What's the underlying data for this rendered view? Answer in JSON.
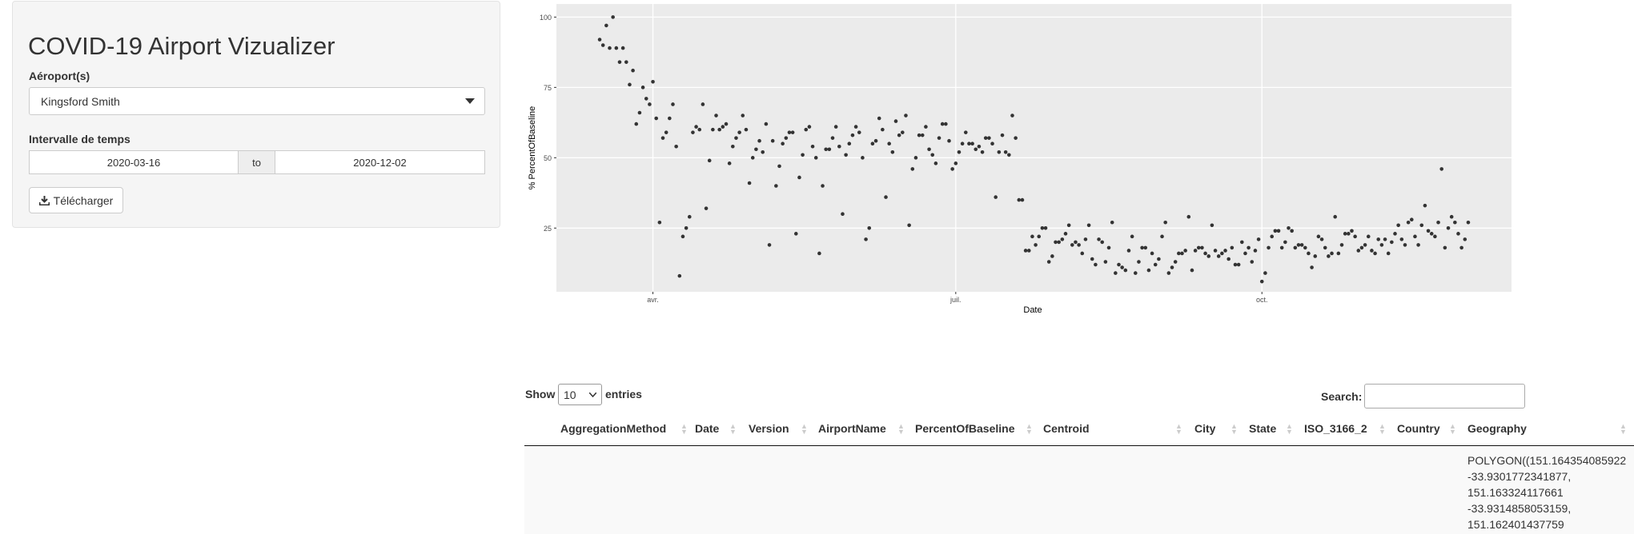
{
  "sidebar": {
    "title": "COVID-19 Airport Vizualizer",
    "airport_label": "Aéroport(s)",
    "airport_value": "Kingsford Smith",
    "date_label": "Intervalle de temps",
    "date_start": "2020-03-16",
    "date_sep": "to",
    "date_end": "2020-12-02",
    "download_button": "Télécharger"
  },
  "chart_data": {
    "type": "scatter",
    "xlabel": "Date",
    "ylabel": "% PercentOfBaseline",
    "grid": true,
    "color": "#333333",
    "xlim": [
      "2020-03-03",
      "2020-12-15"
    ],
    "xticks": [
      {
        "value": "2020-04-01",
        "label": "avr."
      },
      {
        "value": "2020-07-01",
        "label": "juil."
      },
      {
        "value": "2020-10-01",
        "label": "oct."
      }
    ],
    "ylim": [
      2.35,
      104.65
    ],
    "yticks": [
      25,
      50,
      75,
      100
    ],
    "x": [
      "2020-03-16",
      "2020-03-17",
      "2020-03-18",
      "2020-03-19",
      "2020-03-20",
      "2020-03-21",
      "2020-03-22",
      "2020-03-23",
      "2020-03-24",
      "2020-03-25",
      "2020-03-26",
      "2020-03-27",
      "2020-03-28",
      "2020-03-29",
      "2020-03-30",
      "2020-03-31",
      "2020-04-01",
      "2020-04-02",
      "2020-04-03",
      "2020-04-04",
      "2020-04-05",
      "2020-04-06",
      "2020-04-07",
      "2020-04-08",
      "2020-04-09",
      "2020-04-10",
      "2020-04-11",
      "2020-04-12",
      "2020-04-13",
      "2020-04-14",
      "2020-04-15",
      "2020-04-16",
      "2020-04-17",
      "2020-04-18",
      "2020-04-19",
      "2020-04-20",
      "2020-04-21",
      "2020-04-22",
      "2020-04-23",
      "2020-04-24",
      "2020-04-25",
      "2020-04-26",
      "2020-04-27",
      "2020-04-28",
      "2020-04-29",
      "2020-04-30",
      "2020-05-01",
      "2020-05-02",
      "2020-05-03",
      "2020-05-04",
      "2020-05-05",
      "2020-05-06",
      "2020-05-07",
      "2020-05-08",
      "2020-05-09",
      "2020-05-10",
      "2020-05-11",
      "2020-05-12",
      "2020-05-13",
      "2020-05-14",
      "2020-05-15",
      "2020-05-16",
      "2020-05-17",
      "2020-05-18",
      "2020-05-19",
      "2020-05-20",
      "2020-05-21",
      "2020-05-22",
      "2020-05-23",
      "2020-05-24",
      "2020-05-25",
      "2020-05-26",
      "2020-05-27",
      "2020-05-28",
      "2020-05-29",
      "2020-05-30",
      "2020-05-31",
      "2020-06-01",
      "2020-06-02",
      "2020-06-03",
      "2020-06-04",
      "2020-06-05",
      "2020-06-06",
      "2020-06-07",
      "2020-06-08",
      "2020-06-09",
      "2020-06-10",
      "2020-06-11",
      "2020-06-12",
      "2020-06-13",
      "2020-06-14",
      "2020-06-15",
      "2020-06-16",
      "2020-06-17",
      "2020-06-18",
      "2020-06-19",
      "2020-06-20",
      "2020-06-21",
      "2020-06-22",
      "2020-06-23",
      "2020-06-24",
      "2020-06-25",
      "2020-06-26",
      "2020-06-27",
      "2020-06-28",
      "2020-06-29",
      "2020-06-30",
      "2020-07-01",
      "2020-07-02",
      "2020-07-03",
      "2020-07-04",
      "2020-07-05",
      "2020-07-06",
      "2020-07-07",
      "2020-07-08",
      "2020-07-09",
      "2020-07-10",
      "2020-07-11",
      "2020-07-12",
      "2020-07-13",
      "2020-07-14",
      "2020-07-15",
      "2020-07-16",
      "2020-07-17",
      "2020-07-18",
      "2020-07-19",
      "2020-07-20",
      "2020-07-21",
      "2020-07-22",
      "2020-07-23",
      "2020-07-24",
      "2020-07-25",
      "2020-07-26",
      "2020-07-27",
      "2020-07-28",
      "2020-07-29",
      "2020-07-30",
      "2020-07-31",
      "2020-08-01",
      "2020-08-02",
      "2020-08-03",
      "2020-08-04",
      "2020-08-05",
      "2020-08-06",
      "2020-08-07",
      "2020-08-08",
      "2020-08-09",
      "2020-08-10",
      "2020-08-11",
      "2020-08-12",
      "2020-08-13",
      "2020-08-14",
      "2020-08-15",
      "2020-08-16",
      "2020-08-17",
      "2020-08-18",
      "2020-08-19",
      "2020-08-20",
      "2020-08-21",
      "2020-08-22",
      "2020-08-23",
      "2020-08-24",
      "2020-08-25",
      "2020-08-26",
      "2020-08-27",
      "2020-08-28",
      "2020-08-29",
      "2020-08-30",
      "2020-08-31",
      "2020-09-01",
      "2020-09-02",
      "2020-09-03",
      "2020-09-04",
      "2020-09-05",
      "2020-09-06",
      "2020-09-07",
      "2020-09-08",
      "2020-09-09",
      "2020-09-10",
      "2020-09-11",
      "2020-09-12",
      "2020-09-13",
      "2020-09-14",
      "2020-09-15",
      "2020-09-16",
      "2020-09-17",
      "2020-09-18",
      "2020-09-19",
      "2020-09-20",
      "2020-09-21",
      "2020-09-22",
      "2020-09-23",
      "2020-09-24",
      "2020-09-25",
      "2020-09-26",
      "2020-09-27",
      "2020-09-28",
      "2020-09-29",
      "2020-09-30",
      "2020-10-01",
      "2020-10-02",
      "2020-10-03",
      "2020-10-04",
      "2020-10-05",
      "2020-10-06",
      "2020-10-07",
      "2020-10-08",
      "2020-10-09",
      "2020-10-10",
      "2020-10-11",
      "2020-10-12",
      "2020-10-13",
      "2020-10-14",
      "2020-10-15",
      "2020-10-16",
      "2020-10-17",
      "2020-10-18",
      "2020-10-19",
      "2020-10-20",
      "2020-10-21",
      "2020-10-22",
      "2020-10-23",
      "2020-10-24",
      "2020-10-25",
      "2020-10-26",
      "2020-10-27",
      "2020-10-28",
      "2020-10-29",
      "2020-10-30",
      "2020-10-31",
      "2020-11-01",
      "2020-11-02",
      "2020-11-03",
      "2020-11-04",
      "2020-11-05",
      "2020-11-06",
      "2020-11-07",
      "2020-11-08",
      "2020-11-09",
      "2020-11-10",
      "2020-11-11",
      "2020-11-12",
      "2020-11-13",
      "2020-11-14",
      "2020-11-15",
      "2020-11-16",
      "2020-11-17",
      "2020-11-18",
      "2020-11-19",
      "2020-11-20",
      "2020-11-21",
      "2020-11-22",
      "2020-11-23",
      "2020-11-24",
      "2020-11-25",
      "2020-11-26",
      "2020-11-27",
      "2020-11-28",
      "2020-11-29",
      "2020-11-30",
      "2020-12-01",
      "2020-12-02"
    ],
    "values": [
      92,
      90,
      97,
      89,
      100,
      89,
      84,
      89,
      84,
      76,
      81,
      62,
      66,
      75,
      71,
      69,
      77,
      64,
      27,
      57,
      59,
      64,
      69,
      54,
      8,
      22,
      25,
      29,
      59,
      61,
      60,
      69,
      32,
      49,
      60,
      65,
      60,
      61,
      62,
      48,
      54,
      57,
      59,
      65,
      60,
      41,
      50,
      53,
      56,
      52,
      62,
      19,
      56,
      40,
      47,
      55,
      57,
      59,
      59,
      23,
      43,
      51,
      60,
      61,
      54,
      50,
      16,
      40,
      53,
      53,
      57,
      61,
      54,
      30,
      51,
      55,
      58,
      61,
      59,
      50,
      21,
      25,
      55,
      56,
      64,
      60,
      36,
      55,
      52,
      63,
      58,
      59,
      65,
      26,
      46,
      50,
      58,
      58,
      61,
      53,
      51,
      48,
      57,
      62,
      62,
      56,
      46,
      48,
      52,
      55,
      59,
      55,
      55,
      53,
      54,
      52,
      57,
      57,
      55,
      36,
      52,
      58,
      52,
      51,
      65,
      57,
      35,
      35,
      17,
      17,
      22,
      19,
      22,
      25,
      25,
      13,
      15,
      20,
      20,
      21,
      23,
      26,
      19,
      20,
      19,
      16,
      21,
      26,
      14,
      12,
      21,
      20,
      13,
      18,
      27,
      9,
      12,
      11,
      10,
      17,
      22,
      9,
      13,
      18,
      18,
      10,
      16,
      12,
      14,
      22,
      27,
      9,
      11,
      13,
      16,
      16,
      17,
      29,
      10,
      17,
      18,
      18,
      16,
      15,
      26,
      17,
      15,
      16,
      17,
      14,
      18,
      12,
      12,
      20,
      16,
      18,
      13,
      17,
      21,
      6,
      9,
      18,
      22,
      24,
      24,
      18,
      20,
      25,
      24,
      18,
      19,
      19,
      18,
      16,
      11,
      15,
      22,
      21,
      18,
      15,
      16,
      29,
      16,
      19,
      23,
      23,
      24,
      22,
      17,
      18,
      19,
      22,
      17,
      16,
      21,
      19,
      21,
      16,
      20,
      23,
      26,
      21,
      19,
      27,
      28,
      22,
      19,
      26,
      33,
      24,
      23,
      22,
      27,
      46,
      18,
      25,
      29,
      27,
      23,
      18,
      21,
      27
    ]
  },
  "table": {
    "length_before": "Show",
    "length_value": "10",
    "length_after": "entries",
    "search_label": "Search:",
    "columns": [
      "AggregationMethod",
      "Date",
      "Version",
      "AirportName",
      "PercentOfBaseline",
      "Centroid",
      "City",
      "State",
      "ISO_3166_2",
      "Country",
      "Geography"
    ],
    "rows": [
      {
        "Geography": "POLYGON((151.164354085922 -33.9301772341877, 151.163324117661 -33.9314858053159, 151.162401437759"
      }
    ]
  }
}
